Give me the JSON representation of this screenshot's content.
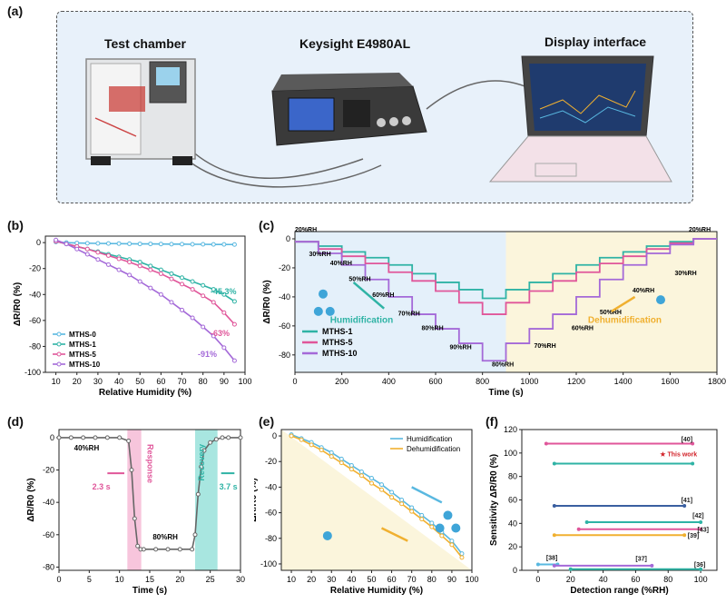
{
  "panel_labels": {
    "a": "(a)",
    "b": "(b)",
    "c": "(c)",
    "d": "(d)",
    "e": "(e)",
    "f": "(f)"
  },
  "panel_a": {
    "chamber_title": "Test chamber",
    "instrument_title": "Keysight E4980AL",
    "display_title": "Display interface"
  },
  "colors": {
    "blue": "#59b8e0",
    "teal": "#2fb3a5",
    "pink": "#e0569a",
    "purple": "#a469d8",
    "orange": "#f0b030",
    "navy": "#3a5fa0",
    "red": "#d2232a"
  },
  "chart_data": [
    {
      "id": "b",
      "type": "line",
      "xlabel": "Relative Humidity (%)",
      "ylabel": "ΔR/R0 (%)",
      "xlim": [
        5,
        100
      ],
      "ylim": [
        -100,
        5
      ],
      "xticks": [
        10,
        20,
        30,
        40,
        50,
        60,
        70,
        80,
        90,
        100
      ],
      "yticks": [
        0,
        -20,
        -40,
        -60,
        -80,
        -100
      ],
      "x": [
        10,
        15,
        20,
        25,
        30,
        35,
        40,
        45,
        50,
        55,
        60,
        65,
        70,
        75,
        80,
        85,
        90,
        95
      ],
      "series": [
        {
          "name": "MTHS-0",
          "color": "#59b8e0",
          "values": [
            0.5,
            0,
            -0.3,
            -0.5,
            -0.6,
            -0.7,
            -0.8,
            -0.9,
            -1,
            -1,
            -1.1,
            -1.2,
            -1.2,
            -1.3,
            -1.3,
            -1.4,
            -1.4,
            -1.5
          ]
        },
        {
          "name": "MTHS-1",
          "color": "#2fb3a5",
          "values": [
            1,
            -1,
            -3,
            -5,
            -7,
            -9,
            -11,
            -13,
            -15,
            -18,
            -21,
            -24,
            -27,
            -30,
            -33,
            -36,
            -40,
            -45.3
          ]
        },
        {
          "name": "MTHS-5",
          "color": "#e0569a",
          "values": [
            1,
            -1,
            -3,
            -5,
            -7.5,
            -10,
            -12.5,
            -15,
            -18,
            -21,
            -24,
            -28,
            -32,
            -36,
            -41,
            -46,
            -54,
            -63
          ]
        },
        {
          "name": "MTHS-10",
          "color": "#a469d8",
          "values": [
            2,
            -1,
            -5,
            -9,
            -13,
            -17,
            -21,
            -25,
            -30,
            -35,
            -40,
            -46,
            -52,
            -58,
            -65,
            -72,
            -81,
            -91
          ]
        }
      ],
      "annotations": [
        {
          "text": "-45.3%",
          "color": "#2fb3a5"
        },
        {
          "text": "-63%",
          "color": "#e0569a"
        },
        {
          "text": "-91%",
          "color": "#a469d8"
        }
      ],
      "legend": "bottom-left"
    },
    {
      "id": "c",
      "type": "line",
      "xlabel": "Time (s)",
      "ylabel": "ΔR/R0 (%)",
      "xlim": [
        0,
        1800
      ],
      "ylim": [
        -92,
        5
      ],
      "xticks": [
        0,
        200,
        400,
        600,
        800,
        1000,
        1200,
        1400,
        1600,
        1800
      ],
      "yticks": [
        0,
        -20,
        -40,
        -60,
        -80
      ],
      "steps_x": [
        0,
        100,
        200,
        300,
        400,
        500,
        600,
        700,
        800,
        900,
        1000,
        1100,
        1200,
        1300,
        1400,
        1500,
        1600,
        1700,
        1800
      ],
      "series": [
        {
          "name": "MTHS-1",
          "color": "#2fb3a5",
          "values": [
            -2,
            -5,
            -9,
            -13,
            -18,
            -24,
            -30,
            -35,
            -41,
            -35,
            -30,
            -24,
            -18,
            -13,
            -9,
            -5,
            -2,
            0
          ]
        },
        {
          "name": "MTHS-5",
          "color": "#e0569a",
          "values": [
            -2,
            -7,
            -12,
            -17,
            -23,
            -29,
            -36,
            -44,
            -52,
            -44,
            -36,
            -29,
            -23,
            -17,
            -12,
            -7,
            -3,
            0
          ]
        },
        {
          "name": "MTHS-10",
          "color": "#a469d8",
          "values": [
            -2,
            -10,
            -18,
            -28,
            -40,
            -52,
            -62,
            -72,
            -84,
            -72,
            -62,
            -52,
            -40,
            -28,
            -18,
            -10,
            -4,
            0
          ]
        }
      ],
      "rh_labels": [
        "20%RH",
        "30%RH",
        "40%RH",
        "50%RH",
        "60%RH",
        "70%RH",
        "80%RH",
        "90%RH",
        "80%RH",
        "70%RH",
        "60%RH",
        "50%RH",
        "40%RH",
        "30%RH",
        "20%RH"
      ],
      "annotations": [
        {
          "text": "Humidification",
          "color": "#2fb3a5"
        },
        {
          "text": "Dehumidification",
          "color": "#f0b030"
        }
      ],
      "legend": "bottom-left"
    },
    {
      "id": "d",
      "type": "line",
      "xlabel": "Time (s)",
      "ylabel": "ΔR/R0 (%)",
      "xlim": [
        0,
        30
      ],
      "ylim": [
        -82,
        5
      ],
      "xticks": [
        0,
        5,
        10,
        15,
        20,
        25,
        30
      ],
      "yticks": [
        0,
        -20,
        -40,
        -60,
        -80
      ],
      "x": [
        0,
        2,
        4,
        6,
        8,
        10,
        11.5,
        12,
        12.5,
        13,
        13.5,
        14,
        16,
        18,
        20,
        22,
        22.5,
        23,
        23.5,
        24,
        25,
        26,
        27,
        28,
        30
      ],
      "values": [
        0,
        0,
        0,
        0,
        0,
        0,
        -2,
        -20,
        -50,
        -67,
        -69,
        -69,
        -69,
        -69,
        -69,
        -69,
        -60,
        -35,
        -18,
        -8,
        -3,
        -1,
        0,
        0,
        0
      ],
      "annotations": [
        {
          "text": "40%RH"
        },
        {
          "text": "80%RH"
        },
        {
          "text": "Response",
          "color": "#e0569a"
        },
        {
          "text": "Recovery",
          "color": "#2fb3a5"
        },
        {
          "text": "2.3 s",
          "color": "#e0569a"
        },
        {
          "text": "3.7 s",
          "color": "#2fb3a5"
        }
      ]
    },
    {
      "id": "e",
      "type": "line",
      "xlabel": "Relative Humidity (%)",
      "ylabel": "ΔR/R0 (%)",
      "xlim": [
        5,
        100
      ],
      "ylim": [
        -105,
        5
      ],
      "xticks": [
        10,
        20,
        30,
        40,
        50,
        60,
        70,
        80,
        90,
        100
      ],
      "yticks": [
        0,
        -20,
        -40,
        -60,
        -80,
        -100
      ],
      "x": [
        10,
        15,
        20,
        25,
        30,
        35,
        40,
        45,
        50,
        55,
        60,
        65,
        70,
        75,
        80,
        85,
        90,
        95
      ],
      "series": [
        {
          "name": "Humidification",
          "color": "#59b8e0",
          "values": [
            1,
            -2,
            -5,
            -9,
            -13,
            -18,
            -23,
            -28,
            -33,
            -38,
            -44,
            -50,
            -56,
            -62,
            -68,
            -75,
            -82,
            -92
          ]
        },
        {
          "name": "Dehumidification",
          "color": "#f0b030",
          "values": [
            0,
            -3,
            -7,
            -11,
            -16,
            -21,
            -26,
            -31,
            -37,
            -42,
            -48,
            -53,
            -59,
            -65,
            -71,
            -78,
            -85,
            -95
          ]
        }
      ],
      "legend": "top-right"
    },
    {
      "id": "f",
      "type": "bar",
      "xlabel": "Detection range (%RH)",
      "ylabel": "Sensitivity ΔR/R0 (%)",
      "xlim": [
        -10,
        110
      ],
      "ylim": [
        0,
        120
      ],
      "xticks": [
        0,
        20,
        40,
        60,
        80,
        100
      ],
      "yticks": [
        0,
        20,
        40,
        60,
        80,
        100,
        120
      ],
      "ranges": [
        {
          "label": "[40]",
          "from": 5,
          "to": 95,
          "y": 108,
          "color": "#e0569a"
        },
        {
          "label": "This work",
          "from": 10,
          "to": 95,
          "y": 91,
          "color": "#2fb3a5"
        },
        {
          "label": "[41]",
          "from": 10,
          "to": 90,
          "y": 55,
          "color": "#3a5fa0"
        },
        {
          "label": "[42]",
          "from": 30,
          "to": 100,
          "y": 41,
          "color": "#2fb3a5"
        },
        {
          "label": "[43]",
          "from": 25,
          "to": 100,
          "y": 35,
          "color": "#e0569a"
        },
        {
          "label": "[39]",
          "from": 10,
          "to": 90,
          "y": 30,
          "color": "#f0b030"
        },
        {
          "label": "[38]",
          "from": 0,
          "to": 12,
          "y": 5,
          "color": "#59b8e0"
        },
        {
          "label": "[37]",
          "from": 10,
          "to": 70,
          "y": 4,
          "color": "#a469d8"
        },
        {
          "label": "[36]",
          "from": 20,
          "to": 100,
          "y": 1,
          "color": "#2fb3a5"
        }
      ]
    }
  ]
}
